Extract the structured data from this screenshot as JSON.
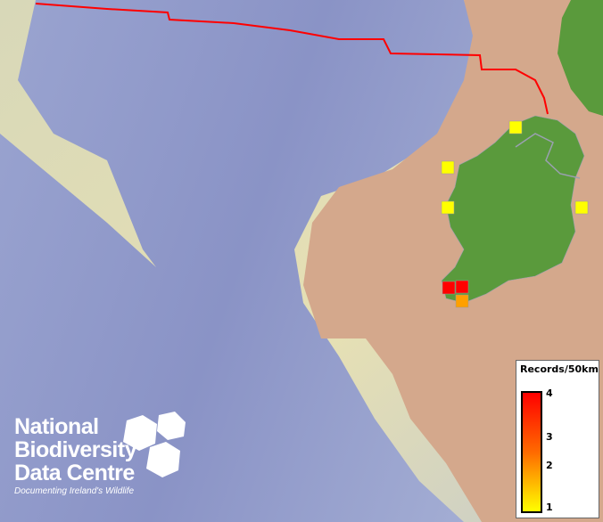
{
  "map": {
    "colors": {
      "sea_deep": "#8c96c8",
      "sea_shelf": "#e0dcb4",
      "land": "#d4a88c",
      "ireland": "#5a9a3c",
      "boundary": "#ff0000"
    },
    "records": [
      {
        "grid": "north-donegal",
        "value": 1,
        "color": "#ffff00"
      },
      {
        "grid": "mayo-west",
        "value": 1,
        "color": "#ffff00"
      },
      {
        "grid": "galway-west",
        "value": 1,
        "color": "#ffff00"
      },
      {
        "grid": "dublin-east",
        "value": 1,
        "color": "#ffff00"
      },
      {
        "grid": "kerry-west",
        "value": 4,
        "color": "#ff0000"
      },
      {
        "grid": "kerry-east",
        "value": 4,
        "color": "#ff0000"
      },
      {
        "grid": "kerry-south",
        "value": 2,
        "color": "#ffa000"
      }
    ]
  },
  "legend": {
    "title": "Records/50km",
    "ticks": [
      "4",
      "3",
      "2",
      "1"
    ],
    "scale": "logarithmic",
    "colors": [
      "#ff0000",
      "#ffff00"
    ]
  },
  "logo": {
    "line1": "National",
    "line2": "Biodiversity",
    "line3": "Data Centre",
    "tagline": "Documenting Ireland's Wildlife"
  }
}
